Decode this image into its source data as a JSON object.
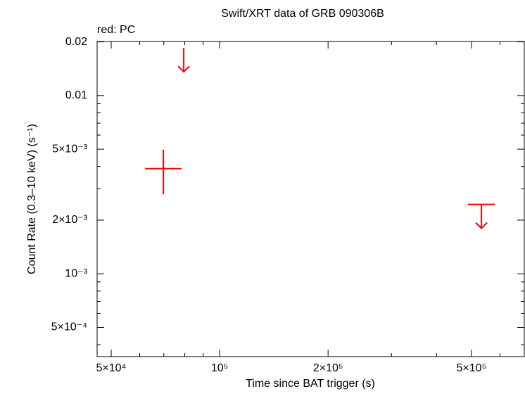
{
  "chart_data": {
    "type": "scatter",
    "title": "Swift/XRT data of GRB 090306B",
    "annotation": "red: PC",
    "x_label": "Time since BAT trigger (s)",
    "y_label": "Count Rate (0.3–10 keV) (s⁻¹)",
    "log_x": true,
    "log_y": true,
    "xlim": [
      45700,
      701000
    ],
    "ylim": [
      0.000343,
      0.0201
    ],
    "xticks": [
      {
        "value": 50000,
        "label": "5×10⁴"
      },
      {
        "value": 100000,
        "label": "10⁵"
      },
      {
        "value": 200000,
        "label": "2×10⁵"
      },
      {
        "value": 500000,
        "label": "5×10⁵"
      }
    ],
    "yticks": [
      {
        "value": 0.0005,
        "label": "5×10⁻⁴"
      },
      {
        "value": 0.001,
        "label": "10⁻³"
      },
      {
        "value": 0.002,
        "label": "2×10⁻³"
      },
      {
        "value": 0.005,
        "label": "5×10⁻³"
      },
      0.01,
      0.02
    ],
    "xminorticks": [
      60000,
      70000,
      80000,
      90000,
      300000,
      400000,
      600000
    ],
    "yminorticks": [
      0.0004,
      0.0006,
      0.0007,
      0.0008,
      0.0009,
      0.003,
      0.004,
      0.006,
      0.007,
      0.008,
      0.009
    ],
    "series": [
      {
        "kind": "point",
        "color": "#ff0000",
        "x": [
          69800
        ],
        "x_low": [
          62100
        ],
        "x_high": [
          78400
        ],
        "values": [
          0.00389
        ],
        "y_low": [
          0.00279
        ],
        "y_high": [
          0.00497
        ]
      },
      {
        "kind": "upper_limit",
        "color": "#ff0000",
        "x": [
          79500,
          533000
        ],
        "x_low": [
          null,
          489000
        ],
        "x_high": [
          null,
          581000
        ],
        "values": [
          0.0185,
          0.00245
        ]
      }
    ]
  }
}
